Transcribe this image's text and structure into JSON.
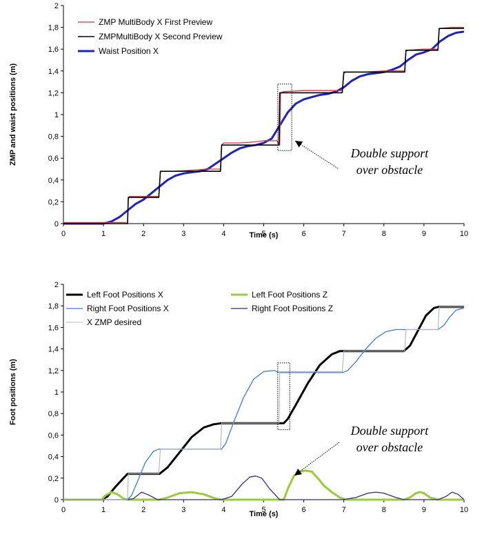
{
  "chart_data": [
    {
      "type": "line",
      "xlabel": "Time (s)",
      "ylabel": "ZMP and waist positions (m)",
      "xlim": [
        0,
        10
      ],
      "ylim": [
        0,
        2
      ],
      "xticks": [
        "0",
        "1",
        "2",
        "3",
        "4",
        "5",
        "6",
        "7",
        "8",
        "9",
        "10"
      ],
      "yticks": [
        "0",
        "0,2",
        "0,4",
        "0,6",
        "0,8",
        "1",
        "1,2",
        "1,4",
        "1,6",
        "1,8",
        "2"
      ],
      "legend_position": "top-left",
      "annotation": [
        "Double support",
        "over obstacle"
      ],
      "highlight_box": {
        "x": [
          5.35,
          5.7
        ],
        "y": [
          0.67,
          1.28
        ]
      },
      "series": [
        {
          "name": "ZMP MultiBody X First Preview",
          "color": "#e03030",
          "x": [
            0,
            1.4,
            1.55,
            1.6,
            1.62,
            1.65,
            2.0,
            2.38,
            2.42,
            2.45,
            2.8,
            3.2,
            3.6,
            3.92,
            3.95,
            4.0,
            4.4,
            4.8,
            5.0,
            5.33,
            5.37,
            5.4,
            5.42,
            5.5,
            6.0,
            6.96,
            7.0,
            7.05,
            7.5,
            8.0,
            8.52,
            8.55,
            8.6,
            9.0,
            9.35,
            9.38,
            9.4,
            9.7,
            10.0
          ],
          "y": [
            0.01,
            0.01,
            0.01,
            0.0,
            0.23,
            0.25,
            0.25,
            0.25,
            0.47,
            0.48,
            0.48,
            0.49,
            0.5,
            0.5,
            0.72,
            0.74,
            0.74,
            0.75,
            0.76,
            0.76,
            0.73,
            0.72,
            1.2,
            1.21,
            1.22,
            1.22,
            1.38,
            1.39,
            1.39,
            1.4,
            1.4,
            1.58,
            1.59,
            1.6,
            1.6,
            1.78,
            1.79,
            1.8,
            1.8
          ]
        },
        {
          "name": "ZMPMultiBody X Second Preview",
          "color": "#000000",
          "x": [
            0,
            1.55,
            1.6,
            1.62,
            2.38,
            2.42,
            3.92,
            3.95,
            5.38,
            5.4,
            6.96,
            7.0,
            8.52,
            8.55,
            9.35,
            9.38,
            10.0
          ],
          "y": [
            0.0,
            0.0,
            0.0,
            0.24,
            0.24,
            0.48,
            0.48,
            0.72,
            0.72,
            1.2,
            1.2,
            1.39,
            1.39,
            1.59,
            1.59,
            1.79,
            1.79
          ]
        },
        {
          "name": "Waist Position X",
          "color": "#1a22c8",
          "x": [
            0,
            1.0,
            1.2,
            1.4,
            1.6,
            1.8,
            2.0,
            2.2,
            2.4,
            2.6,
            2.8,
            3.0,
            3.2,
            3.4,
            3.6,
            3.8,
            4.0,
            4.2,
            4.4,
            4.6,
            4.8,
            5.0,
            5.2,
            5.4,
            5.6,
            5.8,
            6.0,
            6.2,
            6.4,
            6.6,
            6.8,
            7.0,
            7.2,
            7.4,
            7.6,
            7.8,
            8.0,
            8.2,
            8.4,
            8.6,
            8.8,
            9.0,
            9.2,
            9.4,
            9.6,
            9.8,
            10.0
          ],
          "y": [
            0.0,
            0.0,
            0.02,
            0.06,
            0.12,
            0.18,
            0.22,
            0.28,
            0.34,
            0.4,
            0.44,
            0.46,
            0.47,
            0.48,
            0.5,
            0.55,
            0.6,
            0.65,
            0.69,
            0.71,
            0.72,
            0.74,
            0.78,
            0.9,
            1.02,
            1.1,
            1.14,
            1.16,
            1.18,
            1.19,
            1.21,
            1.25,
            1.31,
            1.35,
            1.37,
            1.38,
            1.39,
            1.41,
            1.44,
            1.5,
            1.55,
            1.57,
            1.6,
            1.67,
            1.72,
            1.75,
            1.76
          ]
        }
      ]
    },
    {
      "type": "line",
      "xlabel": "Time (s)",
      "ylabel": "Foot positions (m)",
      "xlim": [
        0,
        10
      ],
      "ylim": [
        0,
        2
      ],
      "xticks": [
        "0",
        "1",
        "2",
        "3",
        "4",
        "5",
        "6",
        "7",
        "8",
        "9",
        "10"
      ],
      "yticks": [
        "0",
        "0,2",
        "0,4",
        "0,6",
        "0,8",
        "1",
        "1,2",
        "1,4",
        "1,6",
        "1,8",
        "2"
      ],
      "legend_position": "top",
      "annotation": [
        "Double support",
        "over obstacle"
      ],
      "highlight_box": {
        "x": [
          5.35,
          5.65
        ],
        "y": [
          0.65,
          1.27
        ]
      },
      "series": [
        {
          "name": "Left Foot Positions X",
          "color": "#000000",
          "x": [
            0,
            0.95,
            1.1,
            1.3,
            1.5,
            1.6,
            2.4,
            2.6,
            2.9,
            3.2,
            3.5,
            3.75,
            3.95,
            5.5,
            5.6,
            5.8,
            6.1,
            6.4,
            6.7,
            6.9,
            7.05,
            8.5,
            8.65,
            8.85,
            9.05,
            9.25,
            9.35,
            10.0
          ],
          "y": [
            0.0,
            0.0,
            0.03,
            0.12,
            0.2,
            0.24,
            0.24,
            0.3,
            0.44,
            0.58,
            0.67,
            0.7,
            0.71,
            0.71,
            0.75,
            0.88,
            1.08,
            1.25,
            1.35,
            1.38,
            1.38,
            1.38,
            1.43,
            1.57,
            1.71,
            1.78,
            1.79,
            1.79
          ]
        },
        {
          "name": "Left Foot Positions Z",
          "color": "#9acd32",
          "x": [
            0,
            0.95,
            1.05,
            1.2,
            1.35,
            1.5,
            1.6,
            2.4,
            2.6,
            2.9,
            3.2,
            3.5,
            3.8,
            3.95,
            5.5,
            5.6,
            5.75,
            5.9,
            6.05,
            6.2,
            6.35,
            6.5,
            6.7,
            6.9,
            7.05,
            8.5,
            8.65,
            8.8,
            8.9,
            9.0,
            9.15,
            9.35,
            10.0
          ],
          "y": [
            0.0,
            0.0,
            0.04,
            0.07,
            0.05,
            0.01,
            0.0,
            0.0,
            0.02,
            0.06,
            0.07,
            0.05,
            0.01,
            0.0,
            0.0,
            0.1,
            0.22,
            0.26,
            0.27,
            0.26,
            0.2,
            0.13,
            0.07,
            0.02,
            0.0,
            0.0,
            0.02,
            0.06,
            0.07,
            0.06,
            0.02,
            0.0,
            0.0
          ]
        },
        {
          "name": "Right Foot Positions X",
          "color": "#3a7ae0",
          "x": [
            0,
            1.6,
            1.7,
            1.85,
            2.05,
            2.25,
            2.38,
            3.95,
            4.05,
            4.25,
            4.5,
            4.75,
            5.0,
            5.25,
            5.4,
            6.97,
            7.1,
            7.3,
            7.55,
            7.8,
            8.05,
            8.3,
            8.5,
            9.35,
            9.5,
            9.65,
            9.8,
            10.0
          ],
          "y": [
            0.0,
            0.0,
            0.04,
            0.17,
            0.35,
            0.45,
            0.47,
            0.47,
            0.52,
            0.72,
            0.95,
            1.12,
            1.19,
            1.2,
            1.18,
            1.18,
            1.2,
            1.28,
            1.4,
            1.5,
            1.56,
            1.58,
            1.58,
            1.58,
            1.62,
            1.7,
            1.76,
            1.78
          ]
        },
        {
          "name": "Right Foot Positions Z",
          "color": "#2e2a8a",
          "x": [
            0,
            1.6,
            1.75,
            1.95,
            2.15,
            2.35,
            3.95,
            4.2,
            4.45,
            4.65,
            4.8,
            4.95,
            5.15,
            5.4,
            6.97,
            7.3,
            7.6,
            7.8,
            8.0,
            8.3,
            8.5,
            9.35,
            9.55,
            9.7,
            9.85,
            10.0
          ],
          "y": [
            0.0,
            0.0,
            0.01,
            0.07,
            0.04,
            0.0,
            0.0,
            0.03,
            0.14,
            0.21,
            0.22,
            0.2,
            0.1,
            0.0,
            0.0,
            0.02,
            0.06,
            0.07,
            0.06,
            0.02,
            0.0,
            0.0,
            0.03,
            0.07,
            0.05,
            0.0
          ]
        },
        {
          "name": "X ZMP desired",
          "color": "#b4b4b4",
          "x": [
            0,
            1.55,
            1.6,
            1.62,
            2.38,
            2.42,
            3.92,
            3.95,
            5.38,
            5.4,
            6.96,
            7.0,
            8.52,
            8.55,
            9.35,
            9.38,
            10.0
          ],
          "y": [
            0.0,
            0.0,
            0.0,
            0.24,
            0.24,
            0.47,
            0.47,
            0.71,
            0.71,
            1.19,
            1.19,
            1.38,
            1.38,
            1.58,
            1.58,
            1.79,
            1.79
          ]
        }
      ]
    }
  ]
}
